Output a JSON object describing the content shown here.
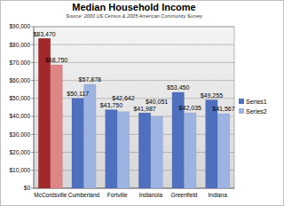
{
  "chart_data": {
    "type": "bar",
    "title": "Median Household Income",
    "subtitle": "Source: 2000 US Census & 2005 American Community Survey",
    "categories": [
      "McCordsville",
      "Cumberland",
      "Fortville",
      "Indianola",
      "Greenfield",
      "Indiana"
    ],
    "series": [
      {
        "name": "Series1",
        "color": "#4f6fbf",
        "colors": [
          "#a3282b",
          "#4f6fbf",
          "#4f6fbf",
          "#4f6fbf",
          "#4f6fbf",
          "#4f6fbf"
        ],
        "values": [
          83470,
          50117,
          43750,
          41987,
          53450,
          49255
        ],
        "value_labels": [
          "$83,470",
          "$50,117",
          "$43,750",
          "$41,987",
          "$53,450",
          "$49,255"
        ]
      },
      {
        "name": "Series2",
        "color": "#9db4e2",
        "colors": [
          "#de8585",
          "#9db4e2",
          "#9db4e2",
          "#9db4e2",
          "#9db4e2",
          "#9db4e2"
        ],
        "values": [
          68750,
          57878,
          42642,
          40051,
          42035,
          41567
        ],
        "value_labels": [
          "$68,750",
          "$57,878",
          "$42,642",
          "$40,051",
          "$42,035",
          "$41,567"
        ]
      }
    ],
    "ylim": [
      0,
      90000
    ],
    "yticks": [
      {
        "value": 0,
        "label": "$0"
      },
      {
        "value": 10000,
        "label": "$10,000"
      },
      {
        "value": 20000,
        "label": "$20,000"
      },
      {
        "value": 30000,
        "label": "$30,000"
      },
      {
        "value": 40000,
        "label": "$40,000"
      },
      {
        "value": 50000,
        "label": "$50,000"
      },
      {
        "value": 60000,
        "label": "$60,000"
      },
      {
        "value": 70000,
        "label": "$70,000"
      },
      {
        "value": 80000,
        "label": "$80,000"
      },
      {
        "value": 90000,
        "label": "$90,000"
      }
    ],
    "grid": true,
    "legend": "right",
    "data_labels": true
  }
}
